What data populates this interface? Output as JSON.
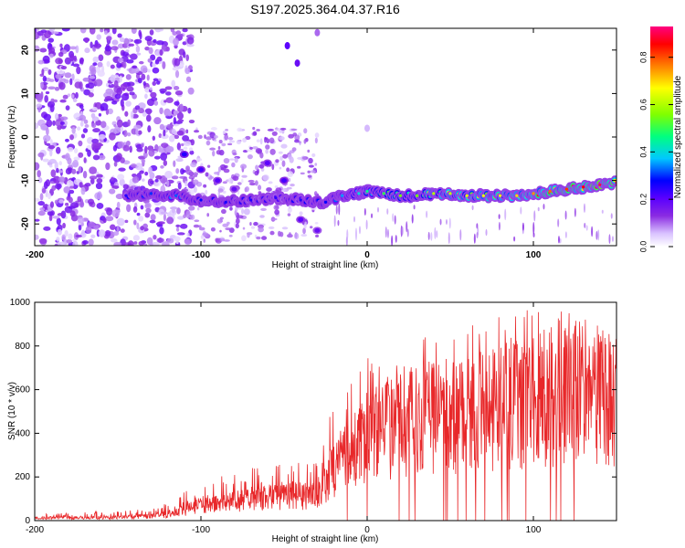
{
  "title": "S197.2025.364.04.37.R16",
  "chart_data": [
    {
      "type": "heatmap",
      "title": "S197.2025.364.04.37.R16",
      "xlabel": "Height of straight line (km)",
      "ylabel": "Frequency (Hz)",
      "xlim": [
        -200,
        150
      ],
      "ylim": [
        -25,
        25
      ],
      "x_ticks": [
        -200,
        -100,
        0,
        100
      ],
      "x_tick_labels": [
        "-200",
        "-100",
        "0",
        "100"
      ],
      "y_ticks": [
        -20,
        -10,
        0,
        10,
        20
      ],
      "y_tick_labels": [
        "-20",
        "-10",
        "0",
        "10",
        "20"
      ],
      "colorbar": {
        "label": "Normalized spectral amplitude",
        "range": [
          0,
          0.93
        ],
        "ticks": [
          0.0,
          0.2,
          0.4,
          0.6,
          0.8
        ],
        "tick_labels": [
          "0.0",
          "0.2",
          "0.4",
          "0.6",
          "0.8"
        ],
        "colormap": [
          "#ffffff",
          "#d9c2ff",
          "#8a2be2",
          "#5a00ff",
          "#0000ff",
          "#00c8ff",
          "#00ff80",
          "#80ff00",
          "#ffff00",
          "#ff8000",
          "#ff0000",
          "#ff0080"
        ]
      },
      "ridge": [
        {
          "x": -145,
          "y": -13.5,
          "amp": 0.25
        },
        {
          "x": -130,
          "y": -13.0,
          "amp": 0.3
        },
        {
          "x": -115,
          "y": -13.5,
          "amp": 0.32
        },
        {
          "x": -100,
          "y": -14.5,
          "amp": 0.28
        },
        {
          "x": -85,
          "y": -15.0,
          "amp": 0.26
        },
        {
          "x": -70,
          "y": -14.5,
          "amp": 0.25
        },
        {
          "x": -55,
          "y": -14.0,
          "amp": 0.24
        },
        {
          "x": -40,
          "y": -14.5,
          "amp": 0.25
        },
        {
          "x": -25,
          "y": -15.0,
          "amp": 0.28
        },
        {
          "x": -15,
          "y": -13.5,
          "amp": 0.35
        },
        {
          "x": -5,
          "y": -13.0,
          "amp": 0.4
        },
        {
          "x": 0,
          "y": -12.5,
          "amp": 0.45
        },
        {
          "x": 10,
          "y": -13.0,
          "amp": 0.5
        },
        {
          "x": 20,
          "y": -13.5,
          "amp": 0.55
        },
        {
          "x": 30,
          "y": -13.5,
          "amp": 0.55
        },
        {
          "x": 40,
          "y": -13.0,
          "amp": 0.6
        },
        {
          "x": 50,
          "y": -13.0,
          "amp": 0.62
        },
        {
          "x": 60,
          "y": -13.5,
          "amp": 0.65
        },
        {
          "x": 70,
          "y": -13.5,
          "amp": 0.65
        },
        {
          "x": 80,
          "y": -13.5,
          "amp": 0.68
        },
        {
          "x": 90,
          "y": -13.5,
          "amp": 0.7
        },
        {
          "x": 100,
          "y": -13.0,
          "amp": 0.75
        },
        {
          "x": 110,
          "y": -12.5,
          "amp": 0.78
        },
        {
          "x": 120,
          "y": -12.0,
          "amp": 0.82
        },
        {
          "x": 130,
          "y": -11.5,
          "amp": 0.86
        },
        {
          "x": 140,
          "y": -11.0,
          "amp": 0.9
        },
        {
          "x": 150,
          "y": -10.5,
          "amp": 0.92
        }
      ],
      "secondary_ridge": [
        {
          "x": -110,
          "y": -4.0,
          "amp": 0.25
        },
        {
          "x": -100,
          "y": -7.5,
          "amp": 0.22
        },
        {
          "x": -90,
          "y": -10.0,
          "amp": 0.2
        },
        {
          "x": -80,
          "y": -12.0,
          "amp": 0.18
        },
        {
          "x": -60,
          "y": -6.0,
          "amp": 0.2
        },
        {
          "x": -50,
          "y": -10.0,
          "amp": 0.22
        },
        {
          "x": -40,
          "y": -19.0,
          "amp": 0.2
        },
        {
          "x": -30,
          "y": -21.5,
          "amp": 0.18
        }
      ]
    },
    {
      "type": "line",
      "xlabel": "Height of straight line (km)",
      "ylabel": "SNR (10 * v/v)",
      "xlim": [
        -200,
        150
      ],
      "ylim": [
        0,
        1000
      ],
      "x_ticks": [
        -200,
        -100,
        0,
        100
      ],
      "x_tick_labels": [
        "-200",
        "-100",
        "0",
        "100"
      ],
      "y_ticks": [
        0,
        200,
        400,
        600,
        800,
        1000
      ],
      "y_tick_labels": [
        "0",
        "200",
        "400",
        "600",
        "800",
        "1000"
      ],
      "series": [
        {
          "name": "SNR",
          "color": "#e8282a",
          "envelope_x": [
            -200,
            -150,
            -120,
            -110,
            -100,
            -80,
            -60,
            -40,
            -30,
            -20,
            -10,
            0,
            10,
            20,
            30,
            40,
            50,
            60,
            70,
            80,
            90,
            100,
            110,
            120,
            130,
            140,
            150
          ],
          "envelope_mean": [
            15,
            18,
            30,
            60,
            90,
            110,
            130,
            140,
            150,
            300,
            380,
            480,
            520,
            540,
            580,
            610,
            600,
            620,
            640,
            650,
            660,
            680,
            700,
            700,
            690,
            680,
            670
          ],
          "envelope_peak": [
            35,
            45,
            80,
            130,
            170,
            230,
            260,
            290,
            330,
            560,
            700,
            750,
            760,
            800,
            860,
            940,
            900,
            900,
            930,
            950,
            960,
            980,
            940,
            1000,
            950,
            900,
            880
          ]
        }
      ]
    }
  ]
}
